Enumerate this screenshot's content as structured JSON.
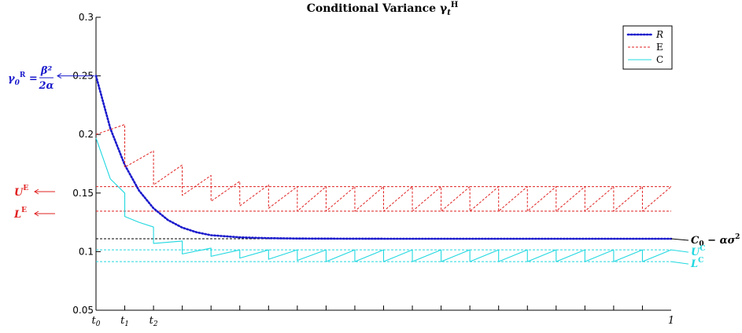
{
  "chart_data": {
    "type": "line",
    "title": "Conditional Variance γ_t^H",
    "xlabel": "",
    "ylabel": "",
    "xlim": [
      0,
      1
    ],
    "ylim": [
      0.05,
      0.3
    ],
    "y_ticks": [
      "0.05",
      "0.1",
      "0.15",
      "0.2",
      "0.25",
      "0.3"
    ],
    "x_tick_labels": [
      {
        "x": 0,
        "label": "t0"
      },
      {
        "x": 0.05,
        "label": "t1"
      },
      {
        "x": 0.1,
        "label": "t2"
      },
      {
        "x": 1,
        "label": "1"
      }
    ],
    "legend": {
      "position": "top-right",
      "entries": [
        "R",
        "E",
        "C"
      ]
    },
    "colors": {
      "R": "#1a1acc",
      "E": "#e02020",
      "C": "#20d8e0",
      "limit": "#000000"
    },
    "thresholds": {
      "U_E": 0.1555,
      "L_E": 0.1345,
      "limit": 0.111,
      "U_C": 0.1015,
      "L_C": 0.0915
    },
    "annotations": {
      "gamma0": "γ0R = β²/2α",
      "UE": "UE",
      "LE": "LE",
      "limit": "C0 − ασ²",
      "UC": "UC",
      "LC": "LC"
    },
    "series": [
      {
        "name": "R",
        "style": "dotted",
        "values_note": "exponential decay",
        "x": [
          0,
          0.025,
          0.05,
          0.075,
          0.1,
          0.125,
          0.15,
          0.175,
          0.2,
          0.25,
          0.3,
          0.35,
          0.4,
          0.5,
          0.6,
          0.8,
          1.0
        ],
        "y": [
          0.25,
          0.205,
          0.174,
          0.152,
          0.137,
          0.127,
          0.1205,
          0.1165,
          0.114,
          0.1122,
          0.1115,
          0.1112,
          0.1111,
          0.111,
          0.111,
          0.111,
          0.111
        ]
      },
      {
        "name": "E",
        "style": "dashed",
        "x": [
          0,
          0.05,
          0.05,
          0.1,
          0.1,
          0.15,
          0.15,
          0.2,
          0.2,
          0.25,
          0.25,
          0.3,
          0.3,
          0.35,
          0.35,
          0.4,
          0.4,
          0.45,
          0.45,
          0.5,
          0.5,
          0.55,
          0.55,
          0.6,
          0.6,
          0.65,
          0.65,
          0.7,
          0.7,
          0.75,
          0.75,
          0.8,
          0.8,
          0.85,
          0.85,
          0.9,
          0.9,
          0.95,
          0.95,
          1.0
        ],
        "y": [
          0.2,
          0.2085,
          0.172,
          0.186,
          0.157,
          0.174,
          0.148,
          0.165,
          0.143,
          0.16,
          0.139,
          0.157,
          0.137,
          0.1555,
          0.1345,
          0.1555,
          0.1345,
          0.1555,
          0.1345,
          0.1555,
          0.1345,
          0.1555,
          0.1345,
          0.1555,
          0.1345,
          0.1555,
          0.1345,
          0.1555,
          0.1345,
          0.1555,
          0.1345,
          0.1555,
          0.1345,
          0.1555,
          0.1345,
          0.1555,
          0.1345,
          0.1555,
          0.1345,
          0.1555
        ]
      },
      {
        "name": "C",
        "style": "solid",
        "x": [
          0,
          0.025,
          0.05,
          0.05,
          0.075,
          0.1,
          0.1,
          0.15,
          0.15,
          0.2,
          0.2,
          0.25,
          0.25,
          0.3,
          0.3,
          0.35,
          0.35,
          0.4,
          0.4,
          0.45,
          0.45,
          0.5,
          0.5,
          0.55,
          0.55,
          0.6,
          0.6,
          0.65,
          0.65,
          0.7,
          0.7,
          0.75,
          0.75,
          0.8,
          0.8,
          0.85,
          0.85,
          0.9,
          0.9,
          0.95,
          0.95,
          1.0
        ],
        "y": [
          0.197,
          0.162,
          0.15,
          0.13,
          0.125,
          0.121,
          0.107,
          0.109,
          0.098,
          0.103,
          0.096,
          0.1015,
          0.0945,
          0.1015,
          0.0935,
          0.1015,
          0.0925,
          0.1015,
          0.0915,
          0.1015,
          0.0915,
          0.1015,
          0.0915,
          0.1015,
          0.0915,
          0.1015,
          0.0915,
          0.1015,
          0.0915,
          0.1015,
          0.0915,
          0.1015,
          0.0915,
          0.1015,
          0.0915,
          0.1015,
          0.0915,
          0.1015,
          0.0915,
          0.1015,
          0.0915,
          0.1015
        ]
      }
    ],
    "x_minor_ticks": [
      0.05,
      0.1,
      0.15,
      0.2,
      0.25,
      0.3,
      0.35,
      0.4,
      0.45,
      0.5,
      0.55,
      0.6,
      0.65,
      0.7,
      0.75,
      0.8,
      0.85,
      0.9,
      0.95
    ],
    "grid": false
  }
}
